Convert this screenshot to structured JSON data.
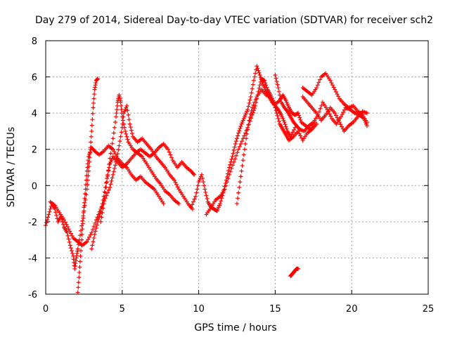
{
  "chart_data": {
    "type": "scatter",
    "title": "Day 279 of 2014, Sidereal Day-to-day VTEC variation (SDTVAR) for receiver sch2",
    "xlabel": "GPS time / hours",
    "ylabel": "SDTVAR / TECUs",
    "xlim": [
      0,
      25
    ],
    "ylim": [
      -6,
      8
    ],
    "xticks": [
      "0",
      "5",
      "10",
      "15",
      "20",
      "25"
    ],
    "yticks": [
      "-6",
      "-4",
      "-2",
      "0",
      "2",
      "4",
      "6",
      "8"
    ],
    "grid": true,
    "marker": "+",
    "color": "#ff0000",
    "tracks": [
      [
        [
          0.0,
          -2.2
        ],
        [
          0.2,
          -1.6
        ],
        [
          0.4,
          -1.0
        ],
        [
          0.6,
          -1.3
        ],
        [
          0.8,
          -2.0
        ],
        [
          1.0,
          -1.7
        ],
        [
          1.2,
          -2.3
        ],
        [
          1.4,
          -2.6
        ],
        [
          1.6,
          -3.3
        ],
        [
          1.8,
          -3.9
        ],
        [
          1.9,
          -4.6
        ],
        [
          2.0,
          -4.0
        ],
        [
          2.1,
          -3.5
        ],
        [
          2.3,
          -2.5
        ],
        [
          2.5,
          -1.4
        ],
        [
          2.7,
          -0.2
        ],
        [
          2.8,
          0.8
        ],
        [
          2.9,
          1.8
        ],
        [
          3.0,
          3.0
        ],
        [
          3.1,
          4.3
        ],
        [
          3.2,
          5.3
        ],
        [
          3.3,
          5.8
        ],
        [
          3.4,
          5.9
        ]
      ],
      [
        [
          2.1,
          -5.9
        ],
        [
          2.2,
          -4.8
        ],
        [
          2.3,
          -3.6
        ],
        [
          2.4,
          -2.4
        ],
        [
          2.5,
          -1.2
        ],
        [
          2.6,
          -0.2
        ],
        [
          2.7,
          0.8
        ],
        [
          2.8,
          1.6
        ],
        [
          3.0,
          2.1
        ],
        [
          3.2,
          1.9
        ],
        [
          3.5,
          1.7
        ],
        [
          3.8,
          1.9
        ],
        [
          4.1,
          2.2
        ],
        [
          4.4,
          2.0
        ],
        [
          4.7,
          1.5
        ],
        [
          5.0,
          1.2
        ],
        [
          5.3,
          1.0
        ],
        [
          5.6,
          0.6
        ],
        [
          5.9,
          0.3
        ],
        [
          6.2,
          0.5
        ],
        [
          6.5,
          0.2
        ],
        [
          6.8,
          0.0
        ],
        [
          7.1,
          -0.2
        ],
        [
          7.4,
          -0.6
        ],
        [
          7.7,
          -1.0
        ]
      ],
      [
        [
          0.3,
          -0.9
        ],
        [
          0.6,
          -1.1
        ],
        [
          0.9,
          -1.5
        ],
        [
          1.2,
          -1.9
        ],
        [
          1.5,
          -2.4
        ],
        [
          1.8,
          -2.9
        ],
        [
          2.1,
          -3.1
        ],
        [
          2.4,
          -3.3
        ],
        [
          2.7,
          -3.1
        ],
        [
          3.0,
          -2.6
        ],
        [
          3.3,
          -1.9
        ],
        [
          3.6,
          -1.3
        ],
        [
          3.9,
          -0.7
        ],
        [
          4.2,
          -0.1
        ],
        [
          4.4,
          0.6
        ],
        [
          4.6,
          1.3
        ],
        [
          4.8,
          2.2
        ],
        [
          5.0,
          3.2
        ],
        [
          5.1,
          4.0
        ],
        [
          5.3,
          4.4
        ],
        [
          5.5,
          3.4
        ],
        [
          5.7,
          2.7
        ],
        [
          6.0,
          2.4
        ],
        [
          6.3,
          2.6
        ],
        [
          6.6,
          2.3
        ],
        [
          6.9,
          2.0
        ],
        [
          7.2,
          1.6
        ],
        [
          7.5,
          1.3
        ],
        [
          7.8,
          1.0
        ],
        [
          8.1,
          0.6
        ],
        [
          8.4,
          0.3
        ],
        [
          8.7,
          -0.2
        ],
        [
          9.0,
          -0.6
        ],
        [
          9.3,
          -1.0
        ],
        [
          9.6,
          -1.3
        ]
      ],
      [
        [
          3.6,
          -2.0
        ],
        [
          3.8,
          -1.0
        ],
        [
          4.0,
          0.2
        ],
        [
          4.2,
          1.5
        ],
        [
          4.4,
          2.6
        ],
        [
          4.6,
          3.8
        ],
        [
          4.7,
          4.6
        ],
        [
          4.8,
          5.0
        ],
        [
          4.9,
          4.6
        ],
        [
          5.0,
          3.8
        ],
        [
          5.2,
          3.0
        ],
        [
          5.4,
          2.4
        ],
        [
          5.7,
          2.0
        ],
        [
          6.0,
          1.8
        ],
        [
          6.3,
          1.6
        ],
        [
          6.6,
          1.2
        ],
        [
          6.9,
          0.8
        ],
        [
          7.2,
          0.4
        ],
        [
          7.5,
          0.1
        ],
        [
          7.8,
          -0.3
        ],
        [
          8.1,
          -0.5
        ],
        [
          8.4,
          -0.8
        ],
        [
          8.7,
          -1.0
        ]
      ],
      [
        [
          3.0,
          -3.5
        ],
        [
          3.2,
          -2.7
        ],
        [
          3.4,
          -2.0
        ],
        [
          3.6,
          -1.4
        ],
        [
          3.8,
          -0.6
        ],
        [
          4.0,
          0.4
        ],
        [
          4.2,
          1.2
        ],
        [
          4.4,
          1.6
        ],
        [
          4.7,
          1.3
        ],
        [
          5.0,
          1.0
        ],
        [
          5.3,
          1.2
        ],
        [
          5.6,
          1.5
        ],
        [
          5.9,
          1.8
        ],
        [
          6.2,
          2.0
        ],
        [
          6.5,
          1.8
        ],
        [
          6.8,
          1.6
        ],
        [
          7.1,
          1.8
        ],
        [
          7.4,
          2.1
        ],
        [
          7.7,
          2.3
        ],
        [
          8.0,
          2.0
        ],
        [
          8.3,
          1.4
        ],
        [
          8.6,
          1.0
        ],
        [
          8.9,
          1.3
        ],
        [
          9.2,
          1.0
        ],
        [
          9.5,
          0.8
        ],
        [
          9.7,
          0.6
        ]
      ],
      [
        [
          9.5,
          -1.2
        ],
        [
          9.8,
          -0.6
        ],
        [
          10.0,
          0.2
        ],
        [
          10.2,
          0.6
        ],
        [
          10.4,
          -0.2
        ],
        [
          10.6,
          -0.9
        ],
        [
          10.8,
          -1.2
        ],
        [
          11.0,
          -1.3
        ],
        [
          11.2,
          -1.4
        ],
        [
          11.4,
          -1.0
        ],
        [
          11.6,
          -0.4
        ],
        [
          11.8,
          0.3
        ],
        [
          12.0,
          1.0
        ],
        [
          12.2,
          1.6
        ],
        [
          12.4,
          2.3
        ],
        [
          12.6,
          2.9
        ],
        [
          12.8,
          3.4
        ],
        [
          13.0,
          3.8
        ],
        [
          13.2,
          4.2
        ],
        [
          13.4,
          4.9
        ],
        [
          13.6,
          5.8
        ],
        [
          13.8,
          6.6
        ],
        [
          14.0,
          6.1
        ],
        [
          14.2,
          5.6
        ],
        [
          14.4,
          5.2
        ],
        [
          14.6,
          4.9
        ],
        [
          14.8,
          4.6
        ],
        [
          15.0,
          4.4
        ],
        [
          15.2,
          4.2
        ],
        [
          15.4,
          3.9
        ],
        [
          15.6,
          3.5
        ],
        [
          15.8,
          3.0
        ],
        [
          16.0,
          2.7
        ],
        [
          16.3,
          3.2
        ]
      ],
      [
        [
          10.5,
          -1.6
        ],
        [
          10.8,
          -1.2
        ],
        [
          11.1,
          -0.8
        ],
        [
          11.4,
          -0.6
        ],
        [
          11.7,
          -0.2
        ],
        [
          12.0,
          0.6
        ],
        [
          12.3,
          1.3
        ],
        [
          12.6,
          2.0
        ],
        [
          12.9,
          2.6
        ],
        [
          13.2,
          3.2
        ],
        [
          13.5,
          3.9
        ],
        [
          13.7,
          4.4
        ],
        [
          13.9,
          5.2
        ],
        [
          14.1,
          5.9
        ],
        [
          14.3,
          5.8
        ],
        [
          14.5,
          5.3
        ],
        [
          14.7,
          5.0
        ],
        [
          14.9,
          4.6
        ],
        [
          15.1,
          4.0
        ],
        [
          15.3,
          3.4
        ],
        [
          15.5,
          3.1
        ],
        [
          15.7,
          2.8
        ],
        [
          15.9,
          2.5
        ],
        [
          16.2,
          2.7
        ],
        [
          16.5,
          3.0
        ],
        [
          16.8,
          2.5
        ],
        [
          17.1,
          2.9
        ],
        [
          17.4,
          3.1
        ],
        [
          17.7,
          3.4
        ]
      ],
      [
        [
          12.5,
          -1.0
        ],
        [
          12.7,
          0.2
        ],
        [
          12.9,
          1.4
        ],
        [
          13.1,
          2.6
        ],
        [
          13.3,
          3.6
        ],
        [
          13.5,
          4.3
        ],
        [
          13.8,
          4.9
        ],
        [
          14.1,
          5.3
        ],
        [
          14.4,
          5.0
        ],
        [
          14.7,
          4.9
        ],
        [
          15.0,
          4.5
        ],
        [
          15.3,
          4.7
        ],
        [
          15.5,
          5.0
        ],
        [
          15.7,
          4.7
        ],
        [
          15.9,
          4.3
        ],
        [
          16.1,
          4.0
        ],
        [
          16.3,
          3.9
        ],
        [
          16.5,
          4.0
        ],
        [
          16.7,
          3.5
        ],
        [
          17.0,
          3.3
        ],
        [
          17.3,
          3.1
        ],
        [
          17.6,
          3.5
        ]
      ],
      [
        [
          15.0,
          6.1
        ],
        [
          15.2,
          5.4
        ],
        [
          15.4,
          4.6
        ],
        [
          15.6,
          4.3
        ],
        [
          15.8,
          4.1
        ],
        [
          16.0,
          3.8
        ],
        [
          16.2,
          3.5
        ],
        [
          16.4,
          3.3
        ],
        [
          16.6,
          3.1
        ],
        [
          16.9,
          3.0
        ],
        [
          17.2,
          3.3
        ],
        [
          17.5,
          3.5
        ],
        [
          17.8,
          3.9
        ],
        [
          18.1,
          4.6
        ],
        [
          18.4,
          4.2
        ],
        [
          18.7,
          3.7
        ],
        [
          19.0,
          3.4
        ],
        [
          19.3,
          3.8
        ],
        [
          19.6,
          4.3
        ],
        [
          19.9,
          4.2
        ],
        [
          20.2,
          4.0
        ],
        [
          20.5,
          3.9
        ],
        [
          20.8,
          3.7
        ],
        [
          21.0,
          3.3
        ]
      ],
      [
        [
          16.8,
          5.4
        ],
        [
          17.1,
          5.2
        ],
        [
          17.4,
          5.0
        ],
        [
          17.7,
          5.4
        ],
        [
          18.0,
          6.0
        ],
        [
          18.3,
          6.2
        ],
        [
          18.6,
          5.8
        ],
        [
          18.9,
          5.3
        ],
        [
          19.2,
          4.8
        ],
        [
          19.5,
          4.5
        ],
        [
          19.8,
          4.3
        ],
        [
          20.1,
          4.4
        ],
        [
          20.4,
          4.1
        ],
        [
          20.7,
          3.9
        ],
        [
          21.0,
          3.5
        ]
      ],
      [
        [
          16.8,
          4.9
        ],
        [
          17.1,
          4.6
        ],
        [
          17.4,
          4.3
        ],
        [
          17.7,
          4.0
        ],
        [
          18.0,
          3.6
        ],
        [
          18.3,
          3.9
        ],
        [
          18.6,
          4.3
        ],
        [
          18.9,
          4.0
        ],
        [
          19.2,
          3.5
        ],
        [
          19.5,
          3.0
        ],
        [
          19.8,
          3.3
        ],
        [
          20.1,
          3.5
        ],
        [
          20.4,
          3.8
        ],
        [
          20.7,
          4.1
        ],
        [
          21.0,
          4.0
        ]
      ],
      [
        [
          16.0,
          -5.0
        ],
        [
          16.1,
          -4.9
        ],
        [
          16.2,
          -4.8
        ],
        [
          16.3,
          -4.7
        ],
        [
          16.4,
          -4.6
        ],
        [
          16.5,
          -4.6
        ]
      ]
    ]
  }
}
